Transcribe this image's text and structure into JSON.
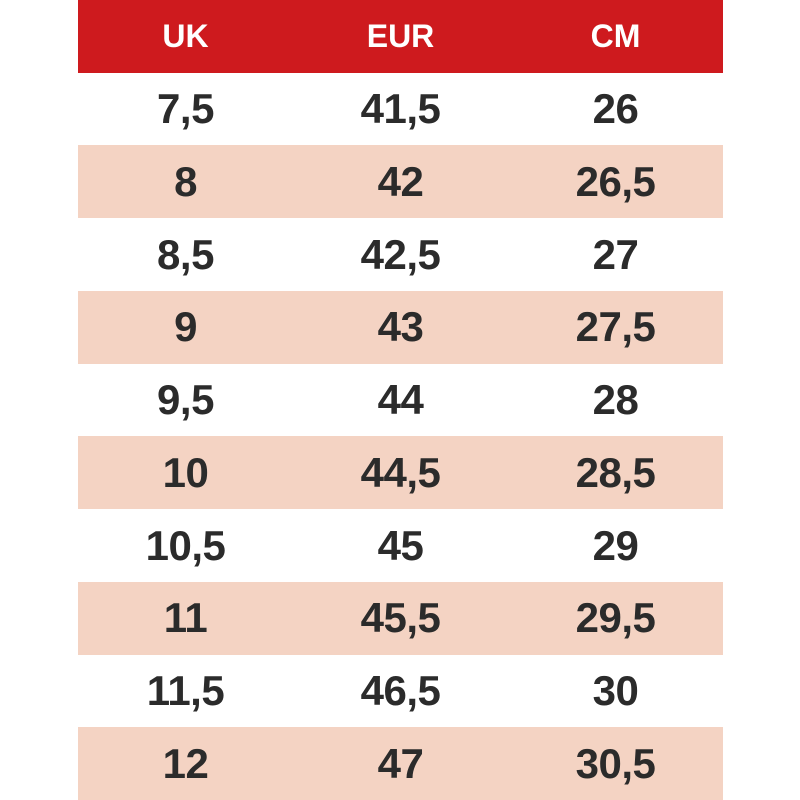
{
  "chart_data": {
    "type": "table",
    "columns": [
      "UK",
      "EUR",
      "CM"
    ],
    "rows": [
      [
        "7,5",
        "41,5",
        "26"
      ],
      [
        "8",
        "42",
        "26,5"
      ],
      [
        "8,5",
        "42,5",
        "27"
      ],
      [
        "9",
        "43",
        "27,5"
      ],
      [
        "9,5",
        "44",
        "28"
      ],
      [
        "10",
        "44,5",
        "28,5"
      ],
      [
        "10,5",
        "45",
        "29"
      ],
      [
        "11",
        "45,5",
        "29,5"
      ],
      [
        "11,5",
        "46,5",
        "30"
      ],
      [
        "12",
        "47",
        "30,5"
      ]
    ],
    "layout": {
      "header_position": "top",
      "grid": "off",
      "row_striping": "alternate starting with second data row"
    }
  },
  "colors": {
    "header_bg": "#ce1a1e",
    "header_text": "#ffffff",
    "row_bg": "#ffffff",
    "row_alt_bg": "#f4d3c3",
    "cell_text": "#2b2b2b",
    "page_bg": "#ffffff"
  }
}
